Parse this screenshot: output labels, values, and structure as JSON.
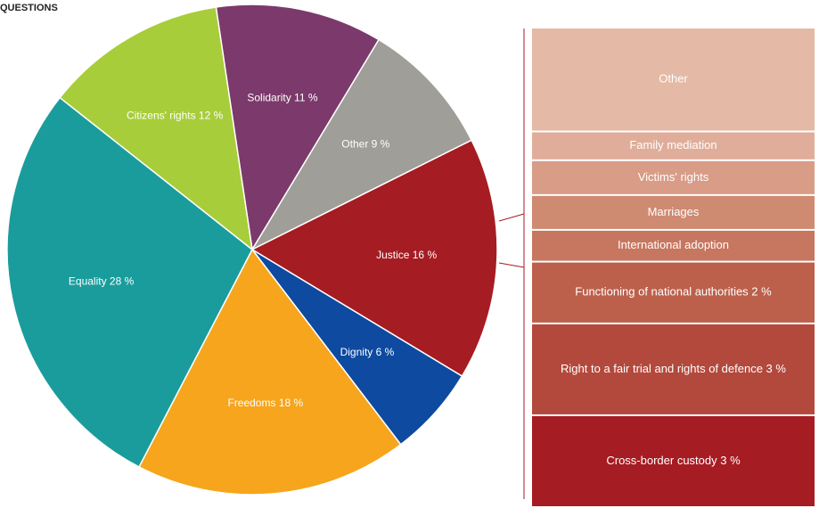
{
  "chart_data": [
    {
      "type": "pie",
      "title": "QUESTIONS",
      "value_labels": [
        "Solidarity 11 %",
        "Other 9 %",
        "Justice 16 %",
        "Dignity 6 %",
        "Freedoms 18 %",
        "Equality 28 %",
        "Citizens' rights 12 %"
      ],
      "values": [
        11,
        9,
        16,
        6,
        18,
        28,
        12
      ],
      "colors": [
        "#7b3a6b",
        "#a09e98",
        "#a51c22",
        "#0d4aa0",
        "#f6a51c",
        "#1a9c9c",
        "#a8cd3a"
      ]
    },
    {
      "type": "stacked-column",
      "value_labels": [
        "Other",
        "Family mediation",
        "Victims' rights",
        "Marriages",
        "International adoption",
        "Functioning of national authorities 2 %",
        "Right to a fair trial and rights of defence 3 %",
        "Cross-border custody 3 %"
      ],
      "values": [
        3.4,
        0.9,
        1.1,
        1.1,
        1.0,
        2,
        3,
        3
      ],
      "colors": [
        "#e4b9a5",
        "#dfad99",
        "#d89c87",
        "#cf8a72",
        "#c7765f",
        "#bc604b",
        "#b3493c",
        "#a61c23"
      ]
    }
  ]
}
